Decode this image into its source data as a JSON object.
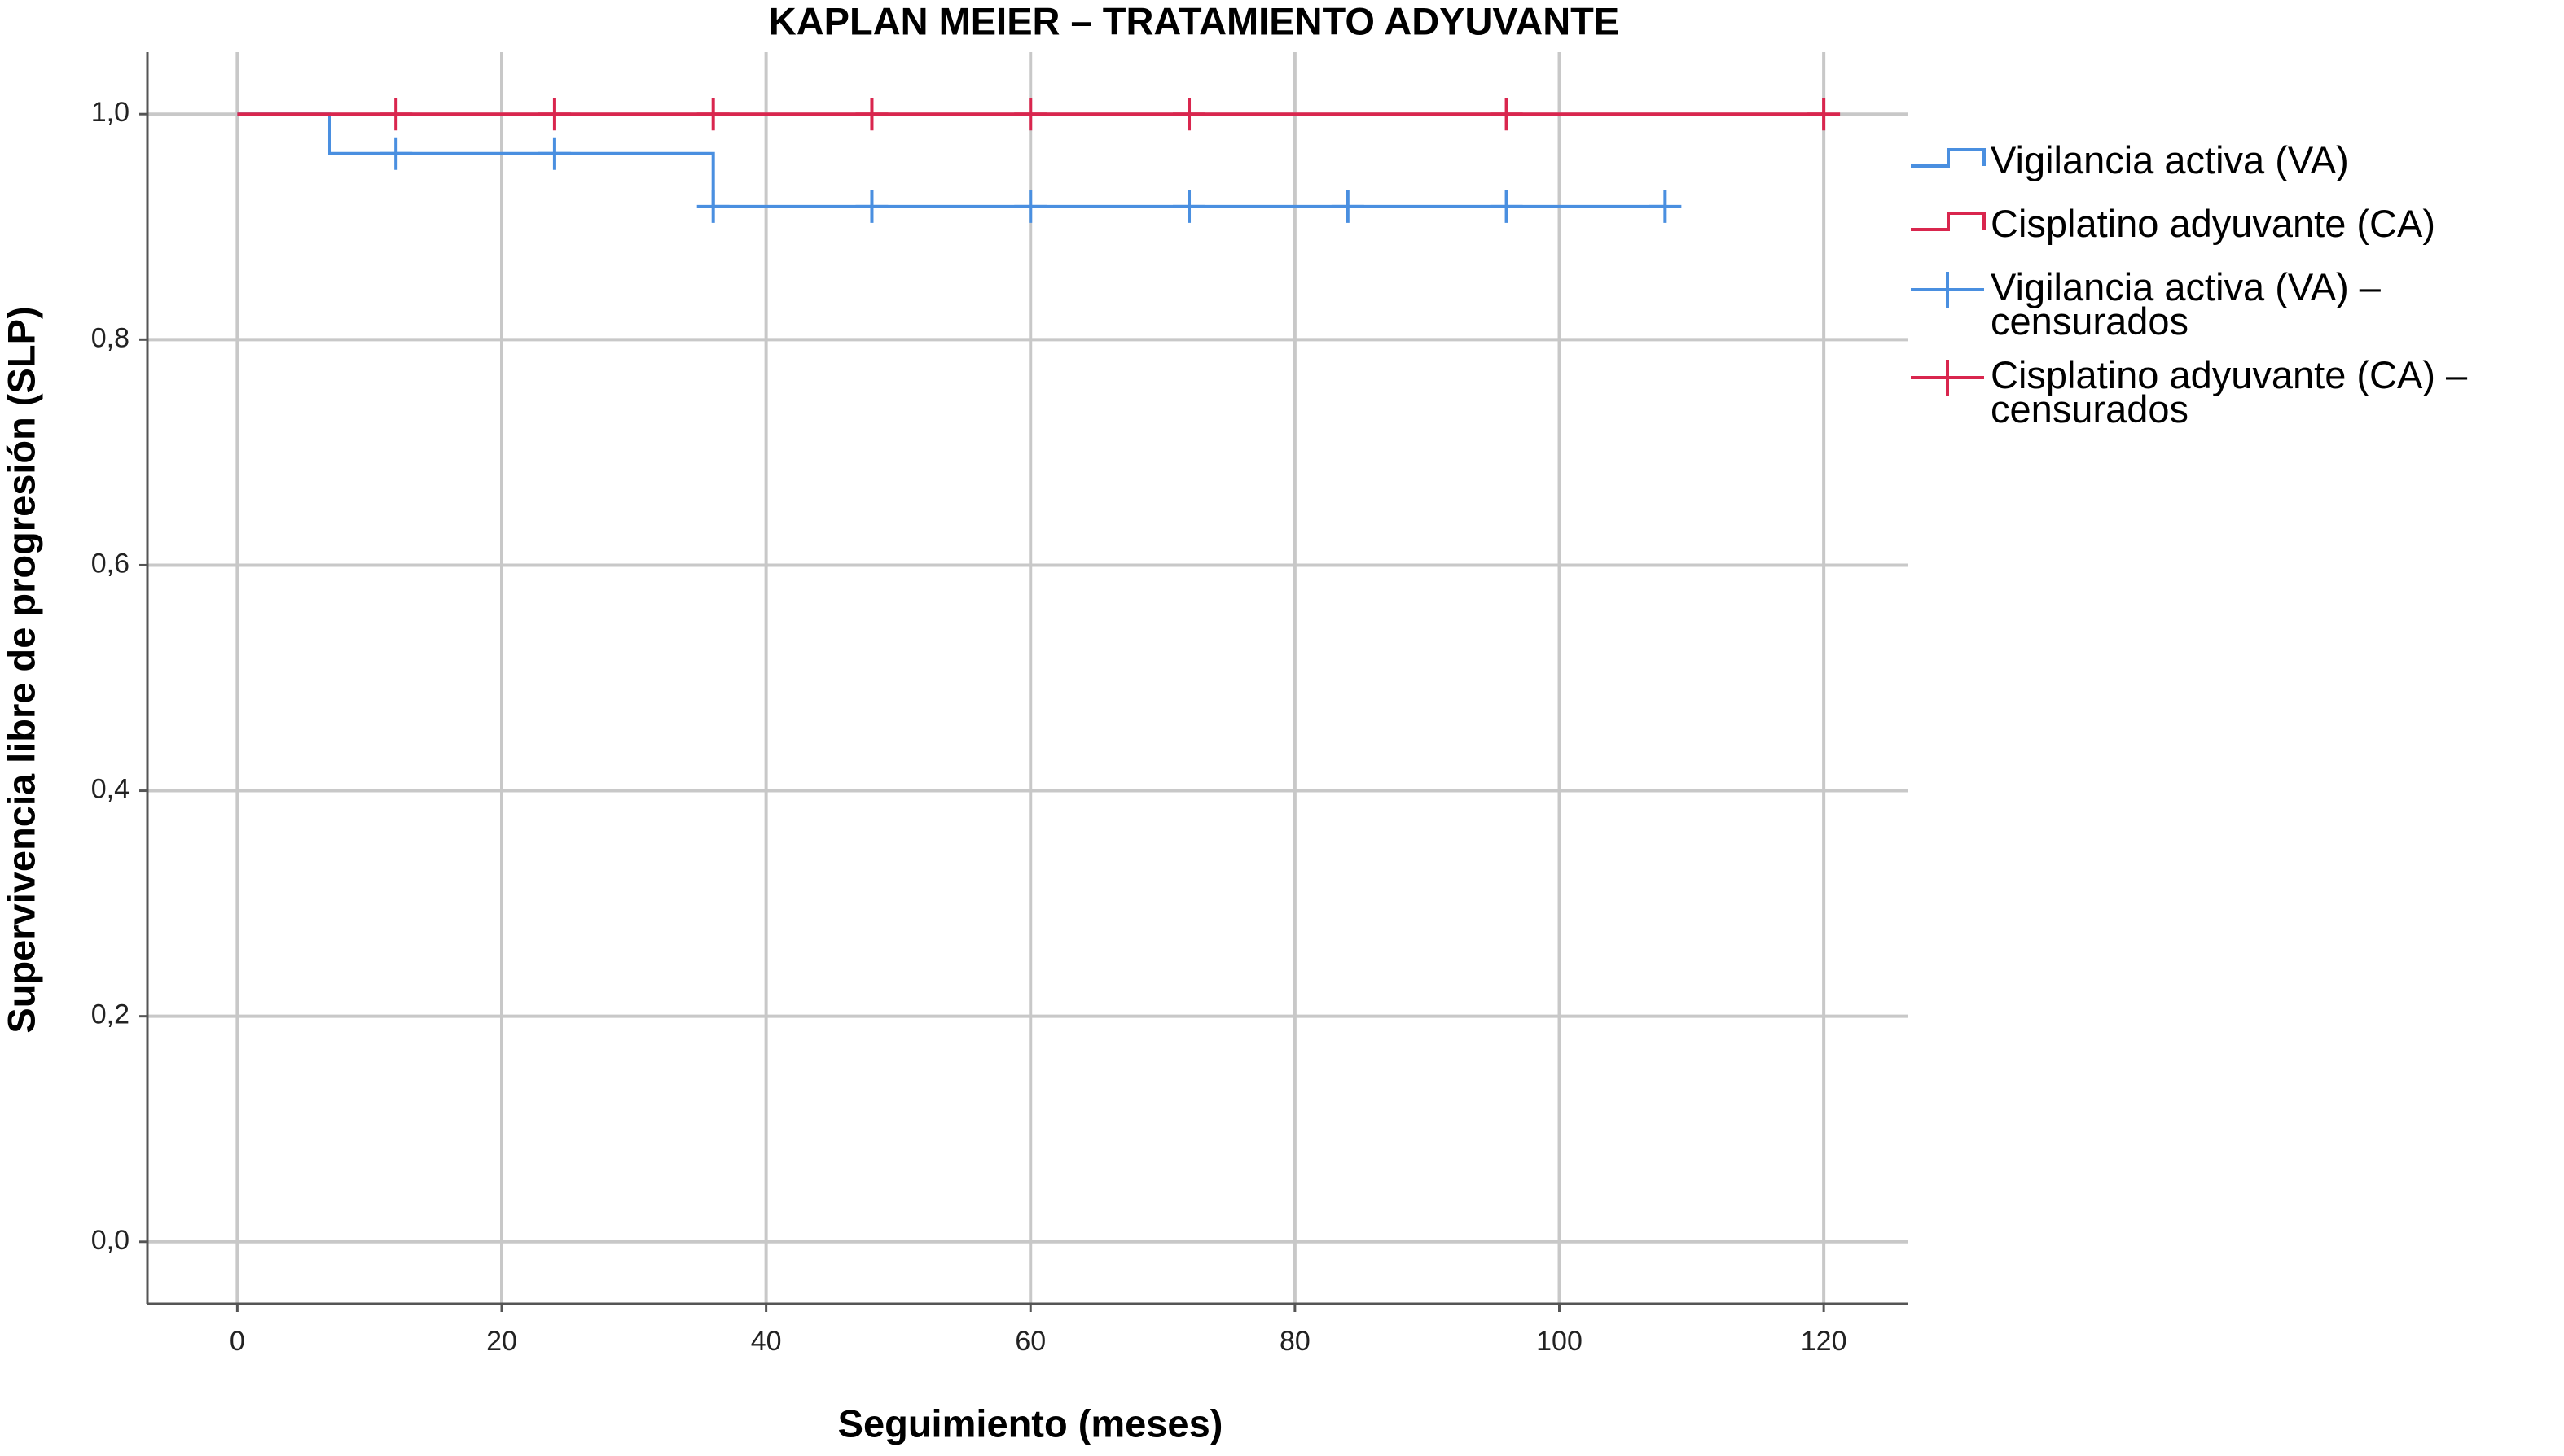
{
  "chart_data": {
    "type": "line",
    "title": "KAPLAN MEIER  –  TRATAMIENTO ADYUVANTE",
    "xlabel": "Seguimiento (meses)",
    "ylabel": "Supervivencia libre de progresión (SLP)",
    "xlim": [
      -6.8,
      126.4
    ],
    "ylim": [
      -0.055,
      1.055
    ],
    "xticks": [
      0,
      20,
      40,
      60,
      80,
      100,
      120
    ],
    "yticks": [
      {
        "value": 0,
        "label": "0,0"
      },
      {
        "value": 0.2,
        "label": "0,2"
      },
      {
        "value": 0.4,
        "label": "0,4"
      },
      {
        "value": 0.6,
        "label": "0,6"
      },
      {
        "value": 0.8,
        "label": "0,8"
      },
      {
        "value": 1,
        "label": "1,0"
      }
    ],
    "grid": true,
    "legend": "right",
    "series": [
      {
        "name": "Vigilancia activa (VA)",
        "color": "#4a8fe0",
        "step": true,
        "x": [
          0,
          7,
          36,
          108
        ],
        "values": [
          1,
          0.965,
          0.918,
          0.918
        ]
      },
      {
        "name": "Cisplatino adyuvante (CA)",
        "color": "#d9264e",
        "step": true,
        "x": [
          0,
          120
        ],
        "values": [
          1,
          1
        ]
      },
      {
        "name": "Vigilancia activa (VA) – censurados",
        "color": "#4a8fe0",
        "marker": "+",
        "x": [
          12,
          24,
          36,
          48,
          60,
          72,
          84,
          96,
          108
        ],
        "values": [
          0.965,
          0.965,
          0.918,
          0.918,
          0.918,
          0.918,
          0.918,
          0.918,
          0.918
        ]
      },
      {
        "name": "Cisplatino adyuvante (CA) – censurados",
        "color": "#d9264e",
        "marker": "+",
        "x": [
          12,
          24,
          36,
          48,
          60,
          72,
          96,
          120
        ],
        "values": [
          1,
          1,
          1,
          1,
          1,
          1,
          1,
          1
        ]
      }
    ]
  }
}
